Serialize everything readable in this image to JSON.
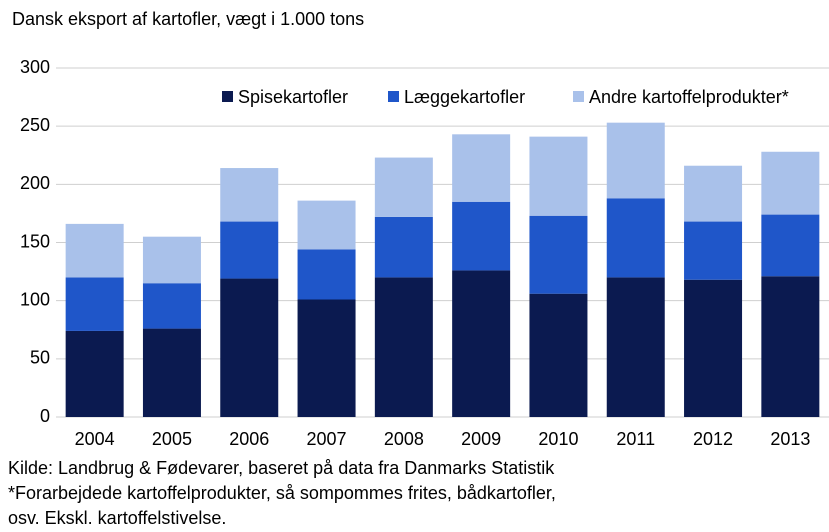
{
  "chart_data": {
    "type": "stacked_bar",
    "title": "Dansk eksport af kartofler, vægt i 1.000 tons",
    "categories": [
      "2004",
      "2005",
      "2006",
      "2007",
      "2008",
      "2009",
      "2010",
      "2011",
      "2012",
      "2013"
    ],
    "series": [
      {
        "name": "Spisekartofler",
        "color": "#0b1a50",
        "values": [
          74,
          76,
          119,
          101,
          120,
          126,
          106,
          120,
          118,
          121
        ]
      },
      {
        "name": "Læggekartofler",
        "color": "#1f56c9",
        "values": [
          46,
          39,
          49,
          43,
          52,
          59,
          67,
          68,
          50,
          53
        ]
      },
      {
        "name": "Andre kartoffelprodukter*",
        "color": "#a9c1ea",
        "values": [
          46,
          40,
          46,
          42,
          51,
          58,
          68,
          65,
          48,
          54
        ]
      }
    ],
    "ylim": [
      0,
      300
    ],
    "yticks": [
      0,
      50,
      100,
      150,
      200,
      250,
      300
    ],
    "grid": true,
    "legend": "top-right",
    "notes": [
      "Kilde:  Landbrug & Fødevarer, baseret på data fra Danmarks Statistik",
      "*Forarbejdede kartoffelprodukter, så sompommes frites, bådkartofler,",
      "osv. Ekskl.  kartoffelstivelse."
    ]
  }
}
